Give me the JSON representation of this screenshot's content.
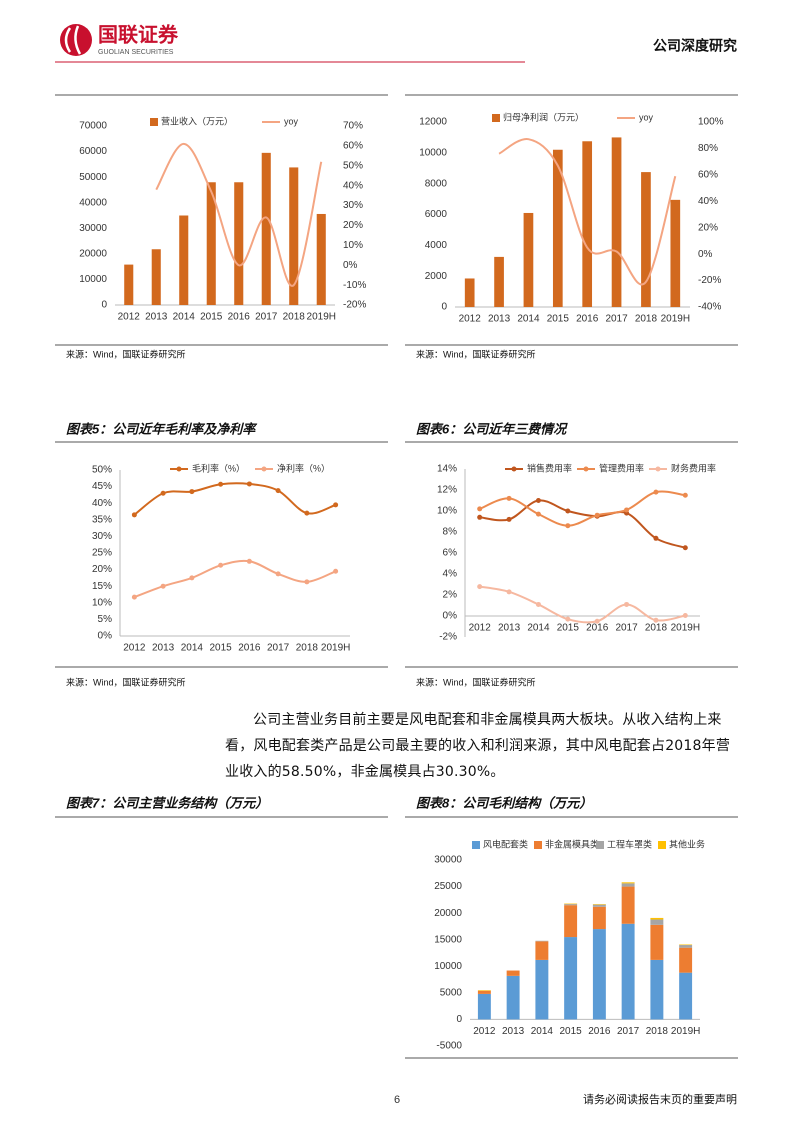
{
  "header": {
    "logo_cn": "国联证券",
    "logo_en": "GUOLIAN SECURITIES",
    "report_type": "公司深度研究"
  },
  "chart_data": [
    {
      "type": "bar",
      "source": "来源：Wind，国联证券研究所",
      "categories": [
        "2012",
        "2013",
        "2014",
        "2015",
        "2016",
        "2017",
        "2018",
        "2019H"
      ],
      "series": [
        {
          "name": "营业收入（万元）",
          "color": "#d2691e",
          "values": [
            15800,
            21800,
            35000,
            48000,
            48000,
            59500,
            53800,
            35600
          ]
        },
        {
          "name": "yoy",
          "type": "line",
          "axis": "y2",
          "color": "#f4a582",
          "values": [
            null,
            38,
            61,
            37,
            0,
            24,
            -10,
            52
          ]
        }
      ],
      "ylim": [
        0,
        70000
      ],
      "yticks": [
        0,
        10000,
        20000,
        30000,
        40000,
        50000,
        60000,
        70000
      ],
      "y2lim": [
        -20,
        70
      ],
      "y2ticks": [
        {
          "value": -20,
          "label": "-20%"
        },
        {
          "value": -10,
          "label": "-10%"
        },
        {
          "value": 0,
          "label": "0%"
        },
        {
          "value": 10,
          "label": "10%"
        },
        {
          "value": 20,
          "label": "20%"
        },
        {
          "value": 30,
          "label": "30%"
        },
        {
          "value": 40,
          "label": "40%"
        },
        {
          "value": 50,
          "label": "50%"
        },
        {
          "value": 60,
          "label": "60%"
        },
        {
          "value": 70,
          "label": "70%"
        }
      ],
      "smooth": true,
      "markers": false
    },
    {
      "type": "bar",
      "source": "来源：Wind，国联证券研究所",
      "categories": [
        "2012",
        "2013",
        "2014",
        "2015",
        "2016",
        "2017",
        "2018",
        "2019H"
      ],
      "series": [
        {
          "name": "归母净利润（万元）",
          "color": "#d2691e",
          "values": [
            1850,
            3250,
            6100,
            10200,
            10750,
            11000,
            8750,
            6950
          ]
        },
        {
          "name": "yoy",
          "type": "line",
          "axis": "y2",
          "color": "#f4a582",
          "values": [
            null,
            76,
            87,
            67,
            5,
            2,
            -21,
            59
          ]
        }
      ],
      "ylim": [
        0,
        12000
      ],
      "yticks": [
        0,
        2000,
        4000,
        6000,
        8000,
        10000,
        12000
      ],
      "y2lim": [
        -40,
        100
      ],
      "y2ticks": [
        {
          "value": -40,
          "label": "-40%"
        },
        {
          "value": -20,
          "label": "-20%"
        },
        {
          "value": 0,
          "label": "0%"
        },
        {
          "value": 20,
          "label": "20%"
        },
        {
          "value": 40,
          "label": "40%"
        },
        {
          "value": 60,
          "label": "60%"
        },
        {
          "value": 80,
          "label": "80%"
        },
        {
          "value": 100,
          "label": "100%"
        }
      ],
      "smooth": true,
      "markers": false
    },
    {
      "type": "line",
      "title": "图表5：公司近年毛利率及净利率",
      "source": "来源：Wind，国联证券研究所",
      "categories": [
        "2012",
        "2013",
        "2014",
        "2015",
        "2016",
        "2017",
        "2018",
        "2019H"
      ],
      "series": [
        {
          "name": "毛利率（%）",
          "color": "#d2691e",
          "values": [
            36.5,
            43,
            43.5,
            45.7,
            45.8,
            43.8,
            37,
            39.5
          ]
        },
        {
          "name": "净利率（%）",
          "color": "#f4a582",
          "values": [
            11.7,
            15,
            17.5,
            21.3,
            22.5,
            18.7,
            16.3,
            19.5
          ]
        }
      ],
      "ylim": [
        0,
        50
      ],
      "yticks": [
        {
          "value": 0,
          "label": "0%"
        },
        {
          "value": 5,
          "label": "5%"
        },
        {
          "value": 10,
          "label": "10%"
        },
        {
          "value": 15,
          "label": "15%"
        },
        {
          "value": 20,
          "label": "20%"
        },
        {
          "value": 25,
          "label": "25%"
        },
        {
          "value": 30,
          "label": "30%"
        },
        {
          "value": 35,
          "label": "35%"
        },
        {
          "value": 40,
          "label": "40%"
        },
        {
          "value": 45,
          "label": "45%"
        },
        {
          "value": 50,
          "label": "50%"
        }
      ],
      "smooth": true,
      "markers": true
    },
    {
      "type": "line",
      "title": "图表6：公司近年三费情况",
      "source": "来源：Wind，国联证券研究所",
      "categories": [
        "2012",
        "2013",
        "2014",
        "2015",
        "2016",
        "2017",
        "2018",
        "2019H"
      ],
      "series": [
        {
          "name": "销售费用率",
          "color": "#c0561e",
          "values": [
            9.4,
            9.2,
            11,
            10,
            9.5,
            9.8,
            7.4,
            6.5
          ]
        },
        {
          "name": "管理费用率",
          "color": "#ec8a4e",
          "values": [
            10.2,
            11.2,
            9.7,
            8.6,
            9.6,
            10.1,
            11.8,
            11.5
          ]
        },
        {
          "name": "财务费用率",
          "color": "#f6b8a0",
          "values": [
            2.8,
            2.3,
            1.1,
            -0.3,
            -0.5,
            1.1,
            -0.4,
            0.05
          ]
        }
      ],
      "ylim": [
        -2,
        14
      ],
      "yticks": [
        {
          "value": -2,
          "label": "-2%"
        },
        {
          "value": 0,
          "label": "0%"
        },
        {
          "value": 2,
          "label": "2%"
        },
        {
          "value": 4,
          "label": "4%"
        },
        {
          "value": 6,
          "label": "6%"
        },
        {
          "value": 8,
          "label": "8%"
        },
        {
          "value": 10,
          "label": "10%"
        },
        {
          "value": 12,
          "label": "12%"
        },
        {
          "value": 14,
          "label": "14%"
        }
      ],
      "smooth": true,
      "markers": true
    },
    {
      "type": "stacked_bar",
      "title": "图表8：公司毛利结构（万元）",
      "categories": [
        "2012",
        "2013",
        "2014",
        "2015",
        "2016",
        "2017",
        "2018",
        "2019H"
      ],
      "series": [
        {
          "name": "风电配套类",
          "color": "#5b9bd5",
          "values": [
            4800,
            8200,
            11200,
            15500,
            17000,
            18000,
            11200,
            8800
          ]
        },
        {
          "name": "非金属模具类",
          "color": "#ed7d31",
          "values": [
            600,
            1000,
            3500,
            6000,
            4200,
            7000,
            6600,
            4700
          ]
        },
        {
          "name": "工程车罩类",
          "color": "#a5a5a5",
          "values": [
            0,
            0,
            100,
            200,
            400,
            600,
            1000,
            500
          ]
        },
        {
          "name": "其他业务",
          "color": "#ffc000",
          "values": [
            100,
            0,
            0,
            100,
            100,
            200,
            300,
            100
          ]
        }
      ],
      "ylim": [
        -5000,
        30000
      ],
      "yticks": [
        -5000,
        0,
        5000,
        10000,
        15000,
        20000,
        25000,
        30000
      ]
    }
  ],
  "figure7_title": "图表7：公司主营业务结构（万元）",
  "body": {
    "paragraph": "公司主营业务目前主要是风电配套和非金属模具两大板块。从收入结构上来看，风电配套类产品是公司最主要的收入和利润来源，其中风电配套占2018年营业收入的58.50%，非金属模具占30.30%。"
  },
  "footer": {
    "page": "6",
    "disclaimer": "请务必阅读报告末页的重要声明"
  }
}
